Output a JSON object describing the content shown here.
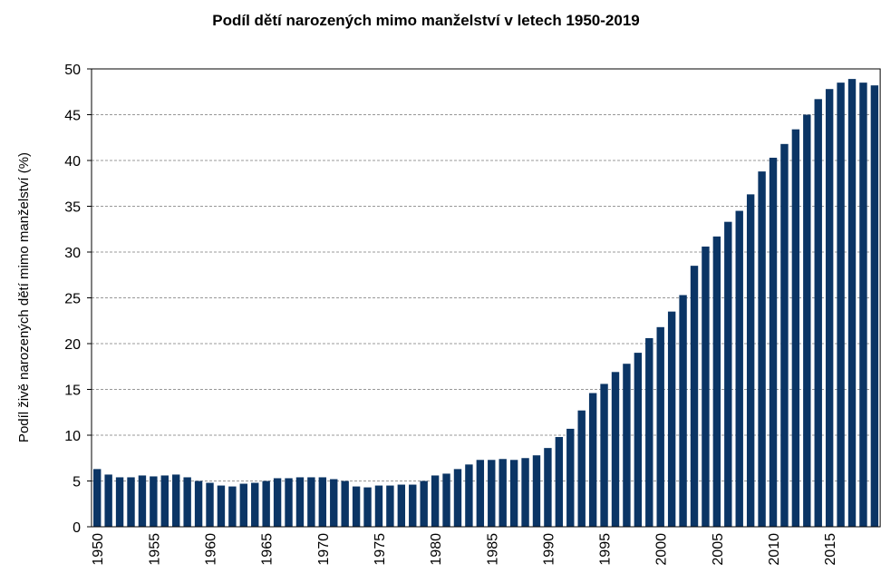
{
  "chart_data": {
    "type": "bar",
    "title": "Podíl dětí narozených mimo manželství v letech 1950-2019",
    "ylabel": "Podíl živě narozených dětí mimo  manželství  (%)",
    "categories": [
      "1950",
      null,
      null,
      null,
      null,
      "1955",
      null,
      null,
      null,
      null,
      "1960",
      null,
      null,
      null,
      null,
      "1965",
      null,
      null,
      null,
      null,
      "1970",
      null,
      null,
      null,
      null,
      "1975",
      null,
      null,
      null,
      null,
      "1980",
      null,
      null,
      null,
      null,
      "1985",
      null,
      null,
      null,
      null,
      "1990",
      null,
      null,
      null,
      null,
      "1995",
      null,
      null,
      null,
      null,
      "2000",
      null,
      null,
      null,
      null,
      "2005",
      null,
      null,
      null,
      null,
      "2010",
      null,
      null,
      null,
      null,
      "2015",
      null,
      null,
      null,
      null
    ],
    "values": [
      6.3,
      5.7,
      5.4,
      5.4,
      5.6,
      5.5,
      5.6,
      5.7,
      5.4,
      5.0,
      4.8,
      4.5,
      4.4,
      4.7,
      4.8,
      5.0,
      5.3,
      5.3,
      5.4,
      5.4,
      5.4,
      5.2,
      5.0,
      4.4,
      4.3,
      4.5,
      4.5,
      4.6,
      4.6,
      5.0,
      5.6,
      5.8,
      6.3,
      6.8,
      7.3,
      7.3,
      7.4,
      7.3,
      7.5,
      7.8,
      8.6,
      9.8,
      10.7,
      12.7,
      14.6,
      15.6,
      16.9,
      17.8,
      19.0,
      20.6,
      21.8,
      23.5,
      25.3,
      28.5,
      30.6,
      31.7,
      33.3,
      34.5,
      36.3,
      38.8,
      40.3,
      41.8,
      43.4,
      45.0,
      46.7,
      47.8,
      48.5,
      48.9,
      48.5,
      48.2
    ],
    "color": "#0b3565",
    "ylim": [
      0,
      50
    ],
    "yticks": [
      0,
      5,
      10,
      15,
      20,
      25,
      30,
      35,
      40,
      45,
      50
    ],
    "grid": true
  }
}
